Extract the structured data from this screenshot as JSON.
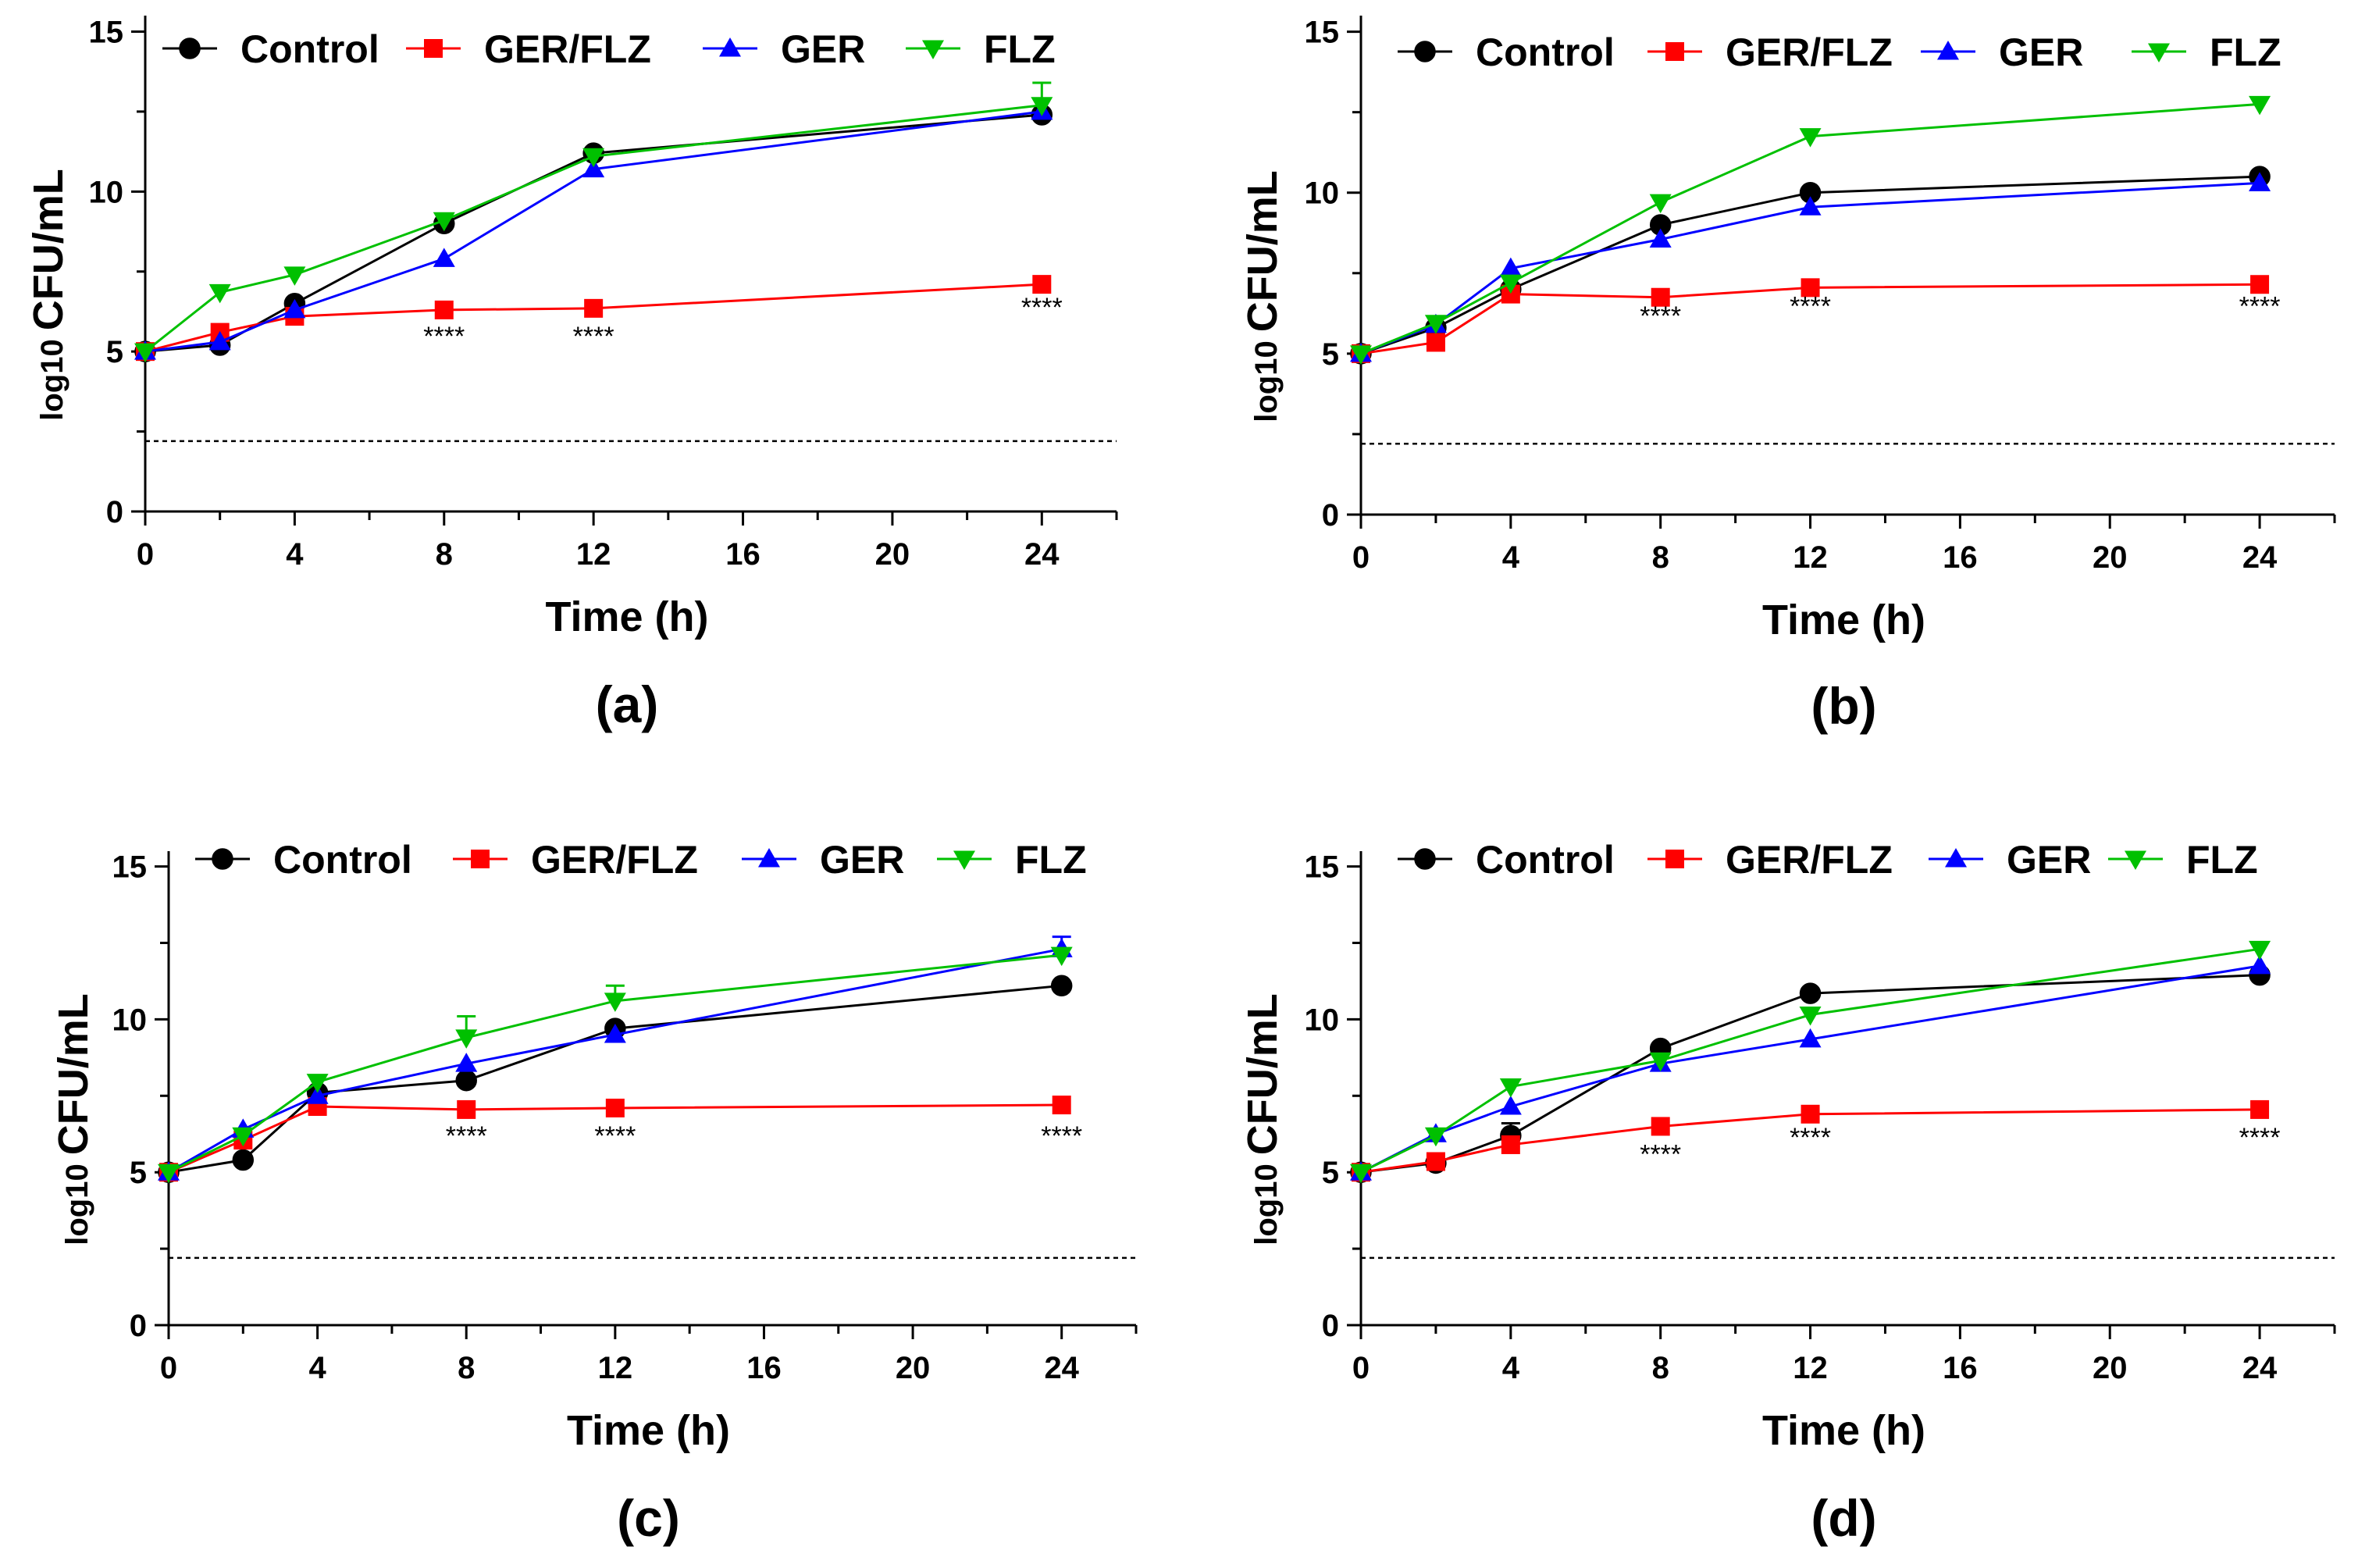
{
  "colors": {
    "Control": "#000000",
    "GER/FLZ": "#ff0000",
    "GER": "#0000ff",
    "FLZ": "#00c000"
  },
  "chart_data": [
    {
      "type": "line",
      "panel_label": "(a)",
      "xlabel": "Time (h)",
      "ylabel_prefix": "log10",
      "ylabel_main": "CFU/mL",
      "xlim": [
        0,
        26
      ],
      "ylim": [
        0,
        15.5
      ],
      "x_ticks": [
        0,
        4,
        8,
        12,
        16,
        20,
        24
      ],
      "y_ticks": [
        0,
        5,
        10,
        15
      ],
      "detection_limit": 2.2,
      "legend": [
        "Control",
        "GER/FLZ",
        "GER",
        "FLZ"
      ],
      "series": [
        {
          "name": "Control",
          "marker": "circle",
          "x": [
            0,
            2,
            4,
            8,
            12,
            24
          ],
          "values": [
            5.0,
            5.2,
            6.5,
            9.0,
            11.2,
            12.4
          ],
          "errors": [
            0,
            0,
            0,
            0,
            0,
            0
          ]
        },
        {
          "name": "GER/FLZ",
          "marker": "square",
          "x": [
            0,
            2,
            4,
            8,
            12,
            24
          ],
          "values": [
            5.0,
            5.6,
            6.1,
            6.3,
            6.35,
            7.1
          ],
          "errors": [
            0,
            0,
            0,
            0,
            0,
            0
          ]
        },
        {
          "name": "GER",
          "marker": "triangle-up",
          "x": [
            0,
            2,
            4,
            8,
            12,
            24
          ],
          "values": [
            5.0,
            5.3,
            6.3,
            7.9,
            10.7,
            12.5
          ],
          "errors": [
            0,
            0,
            0,
            0,
            0,
            0
          ]
        },
        {
          "name": "FLZ",
          "marker": "triangle-down",
          "x": [
            0,
            2,
            4,
            8,
            12,
            24
          ],
          "values": [
            5.0,
            6.85,
            7.4,
            9.1,
            11.1,
            12.7
          ],
          "errors": [
            0,
            0,
            0,
            0,
            0,
            0.7
          ]
        }
      ],
      "annotations": [
        {
          "x": 8,
          "y": 5.2,
          "text": "****"
        },
        {
          "x": 12,
          "y": 5.2,
          "text": "****"
        },
        {
          "x": 24,
          "y": 6.1,
          "text": "****"
        }
      ]
    },
    {
      "type": "line",
      "panel_label": "(b)",
      "xlabel": "Time (h)",
      "ylabel_prefix": "log10",
      "ylabel_main": "CFU/mL",
      "xlim": [
        0,
        26
      ],
      "ylim": [
        0,
        15.5
      ],
      "x_ticks": [
        0,
        4,
        8,
        12,
        16,
        20,
        24
      ],
      "y_ticks": [
        0,
        5,
        10,
        15
      ],
      "detection_limit": 2.2,
      "legend": [
        "Control",
        "GER/FLZ",
        "GER",
        "FLZ"
      ],
      "series": [
        {
          "name": "Control",
          "marker": "circle",
          "x": [
            0,
            2,
            4,
            8,
            12,
            24
          ],
          "values": [
            5.0,
            5.8,
            7.0,
            9.0,
            10.0,
            10.5
          ],
          "errors": [
            0,
            0,
            0,
            0,
            0,
            0
          ]
        },
        {
          "name": "GER/FLZ",
          "marker": "square",
          "x": [
            0,
            2,
            4,
            8,
            12,
            24
          ],
          "values": [
            5.0,
            5.35,
            6.85,
            6.75,
            7.05,
            7.15
          ],
          "errors": [
            0,
            0,
            0,
            0,
            0,
            0
          ]
        },
        {
          "name": "GER",
          "marker": "triangle-up",
          "x": [
            0,
            2,
            4,
            8,
            12,
            24
          ],
          "values": [
            5.0,
            5.9,
            7.65,
            8.55,
            9.55,
            10.3
          ],
          "errors": [
            0,
            0,
            0,
            0,
            0,
            0
          ]
        },
        {
          "name": "FLZ",
          "marker": "triangle-down",
          "x": [
            0,
            2,
            4,
            8,
            12,
            24
          ],
          "values": [
            5.0,
            5.95,
            7.2,
            9.7,
            11.75,
            12.75
          ],
          "errors": [
            0,
            0,
            0,
            0,
            0,
            0
          ]
        }
      ],
      "annotations": [
        {
          "x": 8,
          "y": 5.9,
          "text": "****"
        },
        {
          "x": 12,
          "y": 6.2,
          "text": "****"
        },
        {
          "x": 24,
          "y": 6.2,
          "text": "****"
        }
      ]
    },
    {
      "type": "line",
      "panel_label": "(c)",
      "xlabel": "Time (h)",
      "ylabel_prefix": "log10",
      "ylabel_main": "CFU/mL",
      "xlim": [
        0,
        26
      ],
      "ylim": [
        0,
        15.5
      ],
      "x_ticks": [
        0,
        4,
        8,
        12,
        16,
        20,
        24
      ],
      "y_ticks": [
        0,
        5,
        10,
        15
      ],
      "detection_limit": 2.2,
      "legend": [
        "Control",
        "GER/FLZ",
        "GER",
        "FLZ"
      ],
      "series": [
        {
          "name": "Control",
          "marker": "circle",
          "x": [
            0,
            2,
            4,
            8,
            12,
            24
          ],
          "values": [
            5.0,
            5.4,
            7.6,
            8.0,
            9.7,
            11.1
          ],
          "errors": [
            0,
            0,
            0,
            0,
            0,
            0
          ]
        },
        {
          "name": "GER/FLZ",
          "marker": "square",
          "x": [
            0,
            2,
            4,
            8,
            12,
            24
          ],
          "values": [
            5.0,
            6.05,
            7.15,
            7.05,
            7.1,
            7.2
          ],
          "errors": [
            0,
            0,
            0,
            0,
            0,
            0
          ]
        },
        {
          "name": "GER",
          "marker": "triangle-up",
          "x": [
            0,
            2,
            4,
            8,
            12,
            24
          ],
          "values": [
            5.0,
            6.4,
            7.5,
            8.55,
            9.5,
            12.3
          ],
          "errors": [
            0,
            0,
            0,
            0,
            0,
            0.4
          ]
        },
        {
          "name": "FLZ",
          "marker": "triangle-down",
          "x": [
            0,
            2,
            4,
            8,
            12,
            24
          ],
          "values": [
            5.0,
            6.2,
            7.95,
            9.4,
            10.6,
            12.1
          ],
          "errors": [
            0,
            0,
            0,
            0.7,
            0.5,
            0
          ]
        }
      ],
      "annotations": [
        {
          "x": 8,
          "y": 5.9,
          "text": "****"
        },
        {
          "x": 12,
          "y": 5.9,
          "text": "****"
        },
        {
          "x": 24,
          "y": 5.9,
          "text": "****"
        }
      ]
    },
    {
      "type": "line",
      "panel_label": "(d)",
      "xlabel": "Time (h)",
      "ylabel_prefix": "log10",
      "ylabel_main": "CFU/mL",
      "xlim": [
        0,
        26
      ],
      "ylim": [
        0,
        15.5
      ],
      "x_ticks": [
        0,
        4,
        8,
        12,
        16,
        20,
        24
      ],
      "y_ticks": [
        0,
        5,
        10,
        15
      ],
      "detection_limit": 2.2,
      "legend": [
        "Control",
        "GER/FLZ",
        "GER",
        "FLZ"
      ],
      "series": [
        {
          "name": "Control",
          "marker": "circle",
          "x": [
            0,
            2,
            4,
            8,
            12,
            24
          ],
          "values": [
            5.0,
            5.3,
            6.2,
            9.05,
            10.85,
            11.45
          ],
          "errors": [
            0,
            0,
            0.4,
            0,
            0,
            0
          ]
        },
        {
          "name": "GER/FLZ",
          "marker": "square",
          "x": [
            0,
            2,
            4,
            8,
            12,
            24
          ],
          "values": [
            5.0,
            5.35,
            5.9,
            6.5,
            6.9,
            7.05
          ],
          "errors": [
            0,
            0,
            0,
            0,
            0,
            0
          ]
        },
        {
          "name": "GER",
          "marker": "triangle-up",
          "x": [
            0,
            2,
            4,
            8,
            12,
            24
          ],
          "values": [
            5.0,
            6.25,
            7.15,
            8.55,
            9.35,
            11.75
          ],
          "errors": [
            0,
            0,
            0,
            0,
            0,
            0
          ]
        },
        {
          "name": "FLZ",
          "marker": "triangle-down",
          "x": [
            0,
            2,
            4,
            8,
            12,
            24
          ],
          "values": [
            5.0,
            6.2,
            7.8,
            8.65,
            10.15,
            12.3
          ],
          "errors": [
            0,
            0,
            0,
            0,
            0,
            0
          ]
        }
      ],
      "annotations": [
        {
          "x": 8,
          "y": 5.3,
          "text": "****"
        },
        {
          "x": 12,
          "y": 5.85,
          "text": "****"
        },
        {
          "x": 24,
          "y": 5.85,
          "text": "****"
        }
      ]
    }
  ]
}
